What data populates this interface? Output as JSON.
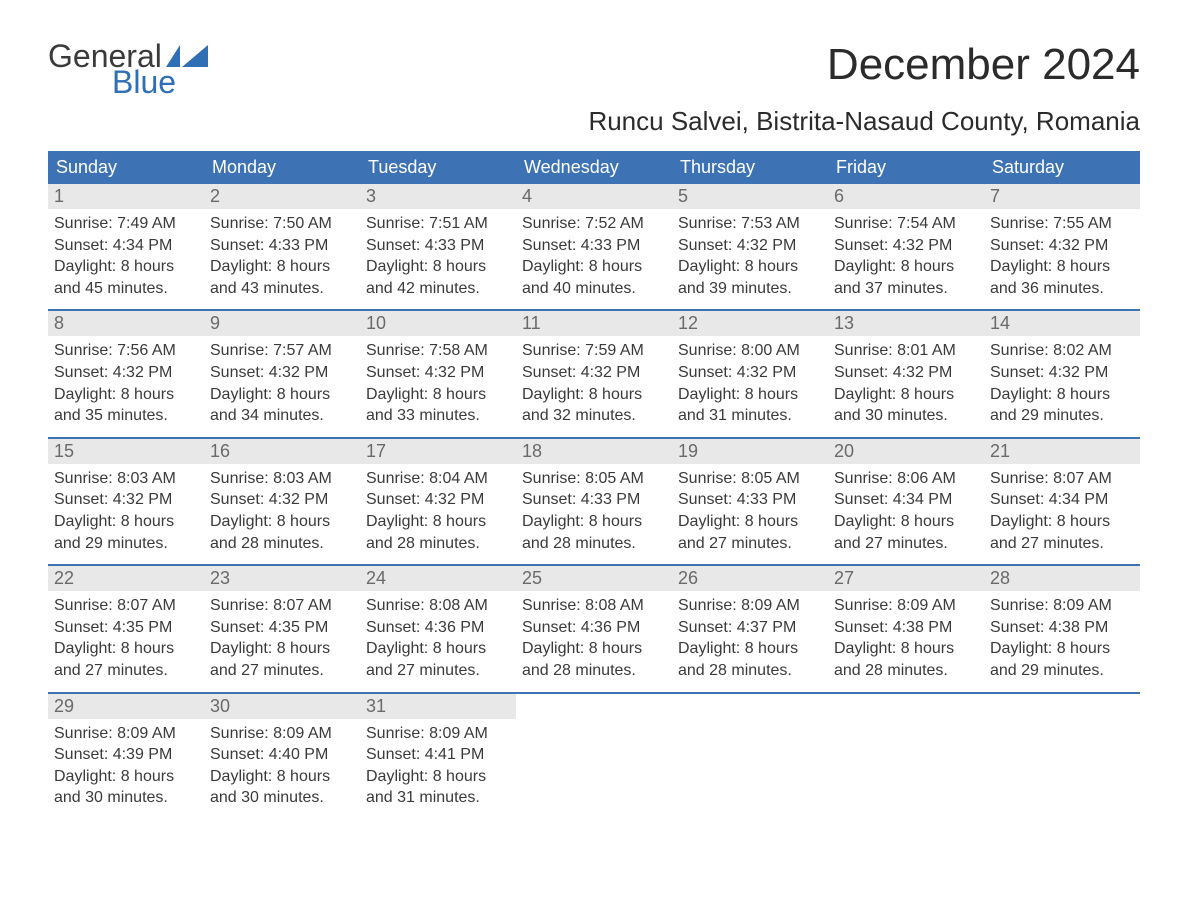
{
  "logo": {
    "line1": "General",
    "line2": "Blue"
  },
  "title": "December 2024",
  "subtitle": "Runcu Salvei, Bistrita-Nasaud County, Romania",
  "colors": {
    "header_bg": "#3d73b5",
    "header_text": "#ffffff",
    "daynum_bg": "#e8e8e8",
    "daynum_text": "#6a6a6a",
    "body_text": "#3a3a3a",
    "logo_blue": "#2f6fb3",
    "border": "#3d73b5"
  },
  "typography": {
    "title_fontsize": 44,
    "subtitle_fontsize": 26,
    "header_fontsize": 18,
    "body_fontsize": 16
  },
  "day_headers": [
    "Sunday",
    "Monday",
    "Tuesday",
    "Wednesday",
    "Thursday",
    "Friday",
    "Saturday"
  ],
  "labels": {
    "sunrise": "Sunrise:",
    "sunset": "Sunset:",
    "daylight_prefix": "Daylight:",
    "hours_word": "hours",
    "and_word": "and",
    "minutes_word": "minutes."
  },
  "weeks": [
    [
      {
        "n": "1",
        "sunrise": "7:49 AM",
        "sunset": "4:34 PM",
        "dl_h": "8",
        "dl_m": "45"
      },
      {
        "n": "2",
        "sunrise": "7:50 AM",
        "sunset": "4:33 PM",
        "dl_h": "8",
        "dl_m": "43"
      },
      {
        "n": "3",
        "sunrise": "7:51 AM",
        "sunset": "4:33 PM",
        "dl_h": "8",
        "dl_m": "42"
      },
      {
        "n": "4",
        "sunrise": "7:52 AM",
        "sunset": "4:33 PM",
        "dl_h": "8",
        "dl_m": "40"
      },
      {
        "n": "5",
        "sunrise": "7:53 AM",
        "sunset": "4:32 PM",
        "dl_h": "8",
        "dl_m": "39"
      },
      {
        "n": "6",
        "sunrise": "7:54 AM",
        "sunset": "4:32 PM",
        "dl_h": "8",
        "dl_m": "37"
      },
      {
        "n": "7",
        "sunrise": "7:55 AM",
        "sunset": "4:32 PM",
        "dl_h": "8",
        "dl_m": "36"
      }
    ],
    [
      {
        "n": "8",
        "sunrise": "7:56 AM",
        "sunset": "4:32 PM",
        "dl_h": "8",
        "dl_m": "35"
      },
      {
        "n": "9",
        "sunrise": "7:57 AM",
        "sunset": "4:32 PM",
        "dl_h": "8",
        "dl_m": "34"
      },
      {
        "n": "10",
        "sunrise": "7:58 AM",
        "sunset": "4:32 PM",
        "dl_h": "8",
        "dl_m": "33"
      },
      {
        "n": "11",
        "sunrise": "7:59 AM",
        "sunset": "4:32 PM",
        "dl_h": "8",
        "dl_m": "32"
      },
      {
        "n": "12",
        "sunrise": "8:00 AM",
        "sunset": "4:32 PM",
        "dl_h": "8",
        "dl_m": "31"
      },
      {
        "n": "13",
        "sunrise": "8:01 AM",
        "sunset": "4:32 PM",
        "dl_h": "8",
        "dl_m": "30"
      },
      {
        "n": "14",
        "sunrise": "8:02 AM",
        "sunset": "4:32 PM",
        "dl_h": "8",
        "dl_m": "29"
      }
    ],
    [
      {
        "n": "15",
        "sunrise": "8:03 AM",
        "sunset": "4:32 PM",
        "dl_h": "8",
        "dl_m": "29"
      },
      {
        "n": "16",
        "sunrise": "8:03 AM",
        "sunset": "4:32 PM",
        "dl_h": "8",
        "dl_m": "28"
      },
      {
        "n": "17",
        "sunrise": "8:04 AM",
        "sunset": "4:32 PM",
        "dl_h": "8",
        "dl_m": "28"
      },
      {
        "n": "18",
        "sunrise": "8:05 AM",
        "sunset": "4:33 PM",
        "dl_h": "8",
        "dl_m": "28"
      },
      {
        "n": "19",
        "sunrise": "8:05 AM",
        "sunset": "4:33 PM",
        "dl_h": "8",
        "dl_m": "27"
      },
      {
        "n": "20",
        "sunrise": "8:06 AM",
        "sunset": "4:34 PM",
        "dl_h": "8",
        "dl_m": "27"
      },
      {
        "n": "21",
        "sunrise": "8:07 AM",
        "sunset": "4:34 PM",
        "dl_h": "8",
        "dl_m": "27"
      }
    ],
    [
      {
        "n": "22",
        "sunrise": "8:07 AM",
        "sunset": "4:35 PM",
        "dl_h": "8",
        "dl_m": "27"
      },
      {
        "n": "23",
        "sunrise": "8:07 AM",
        "sunset": "4:35 PM",
        "dl_h": "8",
        "dl_m": "27"
      },
      {
        "n": "24",
        "sunrise": "8:08 AM",
        "sunset": "4:36 PM",
        "dl_h": "8",
        "dl_m": "27"
      },
      {
        "n": "25",
        "sunrise": "8:08 AM",
        "sunset": "4:36 PM",
        "dl_h": "8",
        "dl_m": "28"
      },
      {
        "n": "26",
        "sunrise": "8:09 AM",
        "sunset": "4:37 PM",
        "dl_h": "8",
        "dl_m": "28"
      },
      {
        "n": "27",
        "sunrise": "8:09 AM",
        "sunset": "4:38 PM",
        "dl_h": "8",
        "dl_m": "28"
      },
      {
        "n": "28",
        "sunrise": "8:09 AM",
        "sunset": "4:38 PM",
        "dl_h": "8",
        "dl_m": "29"
      }
    ],
    [
      {
        "n": "29",
        "sunrise": "8:09 AM",
        "sunset": "4:39 PM",
        "dl_h": "8",
        "dl_m": "30"
      },
      {
        "n": "30",
        "sunrise": "8:09 AM",
        "sunset": "4:40 PM",
        "dl_h": "8",
        "dl_m": "30"
      },
      {
        "n": "31",
        "sunrise": "8:09 AM",
        "sunset": "4:41 PM",
        "dl_h": "8",
        "dl_m": "31"
      },
      {
        "empty": true
      },
      {
        "empty": true
      },
      {
        "empty": true
      },
      {
        "empty": true
      }
    ]
  ]
}
